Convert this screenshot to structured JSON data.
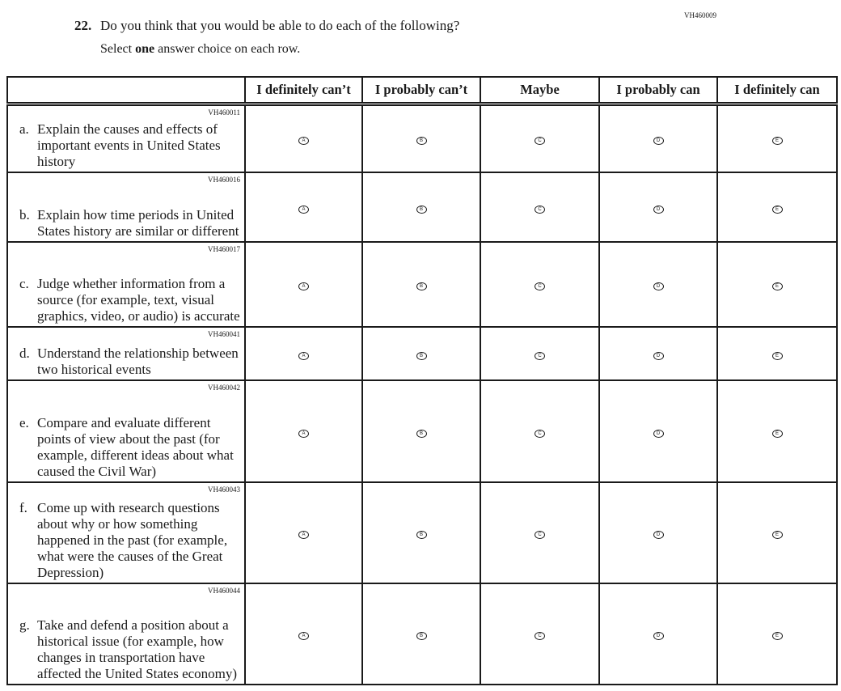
{
  "form_code": "VH460009",
  "question": {
    "number": "22.",
    "text": "Do you think that you would be able to do each of the following?",
    "instruction_pre": "Select ",
    "instruction_bold": "one",
    "instruction_post": " answer choice on each row."
  },
  "columns": [
    "I definitely can’t",
    "I probably can’t",
    "Maybe",
    "I probably can",
    "I definitely can"
  ],
  "choice_letters": [
    "A",
    "B",
    "C",
    "D",
    "E"
  ],
  "rows": [
    {
      "code": "VH460011",
      "letter": "a.",
      "text": "Explain the causes and effects of important events in United States history"
    },
    {
      "code": "VH460016",
      "letter": "b.",
      "text": "Explain how time periods in United States history are similar or different"
    },
    {
      "code": "VH460017",
      "letter": "c.",
      "text": "Judge whether information from a source (for example, text, visual graphics, video, or audio) is accurate"
    },
    {
      "code": "VH460041",
      "letter": "d.",
      "text": "Understand the relationship between two historical events"
    },
    {
      "code": "VH460042",
      "letter": "e.",
      "text": "Compare and evaluate different points of view about the past (for example, different ideas about what caused the Civil War)"
    },
    {
      "code": "VH460043",
      "letter": "f.",
      "text": "Come up with research questions about why or how something happened in the past (for example, what were the causes of the Great Depression)"
    },
    {
      "code": "VH460044",
      "letter": "g.",
      "text": "Take and defend a position about a historical issue (for example, how changes in transportation have affected the United States economy)"
    }
  ]
}
